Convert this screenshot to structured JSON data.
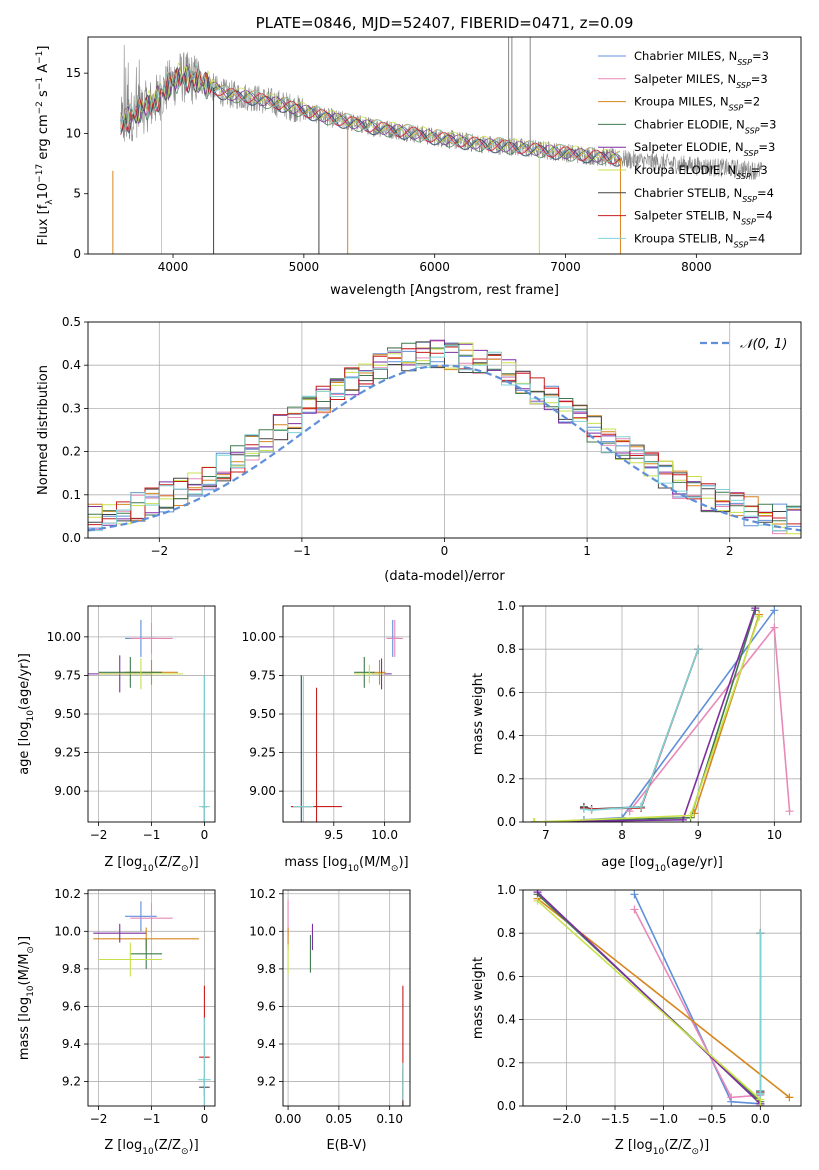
{
  "colors": {
    "chabrier_miles": "#5f8fd8",
    "salpeter_miles": "#e88ab9",
    "kroupa_miles": "#d6861f",
    "chabrier_elodie": "#3f7a4c",
    "salpeter_elodie": "#7e2fa3",
    "kroupa_elodie": "#c8e04a",
    "chabrier_stelib": "#444444",
    "salpeter_stelib": "#c81e1e",
    "kroupa_stelib": "#7fd3d6",
    "data": "#888888",
    "normal": "#5f8fd8"
  },
  "chart_data": [
    {
      "id": "spectrum",
      "type": "line",
      "title": "PLATE=0846, MJD=52407, FIBERID=0471, z=0.09",
      "xlabel": "wavelength [Angstrom, rest frame]",
      "ylabel_parts": [
        "Flux [f",
        "λ",
        "10",
        "−17",
        " erg cm",
        "−2",
        " s",
        "−1",
        " A",
        "−1",
        "]"
      ],
      "xlim": [
        3350,
        8800
      ],
      "ylim": [
        0,
        18
      ],
      "xticks": [
        4000,
        5000,
        6000,
        7000,
        8000
      ],
      "yticks": [
        0,
        5,
        10,
        15
      ],
      "legend_position": "top-right",
      "legend": [
        {
          "model": "Chabrier MILES",
          "n": "3",
          "color_key": "chabrier_miles"
        },
        {
          "model": "Salpeter MILES",
          "n": "3",
          "color_key": "salpeter_miles"
        },
        {
          "model": "Kroupa MILES",
          "n": "2",
          "color_key": "kroupa_miles"
        },
        {
          "model": "Chabrier ELODIE",
          "n": "3",
          "color_key": "chabrier_elodie"
        },
        {
          "model": "Salpeter ELODIE",
          "n": "3",
          "color_key": "salpeter_elodie"
        },
        {
          "model": "Kroupa ELODIE",
          "n": "3",
          "color_key": "kroupa_elodie"
        },
        {
          "model": "Chabrier STELIB",
          "n": "4",
          "color_key": "chabrier_stelib"
        },
        {
          "model": "Salpeter STELIB",
          "n": "4",
          "color_key": "salpeter_stelib"
        },
        {
          "model": "Kroupa STELIB",
          "n": "4",
          "color_key": "kroupa_stelib"
        }
      ],
      "legend_sub": "SSP",
      "continuum": [
        [
          3600,
          10.8
        ],
        [
          3750,
          12.0
        ],
        [
          3850,
          12.5
        ],
        [
          3950,
          13.8
        ],
        [
          4050,
          14.7
        ],
        [
          4200,
          14.4
        ],
        [
          4400,
          13.3
        ],
        [
          4600,
          13.0
        ],
        [
          4800,
          12.5
        ],
        [
          5000,
          11.9
        ],
        [
          5200,
          11.3
        ],
        [
          5500,
          10.6
        ],
        [
          5800,
          10.1
        ],
        [
          6000,
          9.7
        ],
        [
          6300,
          9.2
        ],
        [
          6600,
          8.9
        ],
        [
          7000,
          8.4
        ],
        [
          7500,
          7.8
        ],
        [
          8000,
          7.3
        ],
        [
          8500,
          6.9
        ]
      ],
      "model_range": [
        3600,
        7420
      ],
      "data_range": [
        3600,
        8500
      ],
      "spikes": [
        {
          "x": 3540,
          "min": 0,
          "color_key": "kroupa_miles"
        },
        {
          "x": 3912,
          "min": 0,
          "color_key": "kroupa_elodie"
        },
        {
          "x": 4310,
          "min": 0,
          "color_key": "chabrier_stelib"
        },
        {
          "x": 5115,
          "min": 0,
          "color_key": "chabrier_stelib"
        },
        {
          "x": 5335,
          "min": 0,
          "color_key": "kroupa_miles"
        },
        {
          "x": 6800,
          "min": 0,
          "color_key": "kroupa_elodie"
        },
        {
          "x": 7420,
          "min": 0,
          "color_key": "kroupa_miles"
        },
        {
          "x": 6565,
          "max": 18,
          "color_key": "data"
        },
        {
          "x": 6590,
          "max": 18,
          "color_key": "data"
        },
        {
          "x": 6730,
          "max": 18,
          "color_key": "data"
        }
      ]
    },
    {
      "id": "residuals",
      "type": "histogram",
      "xlabel": "(data-model)/error",
      "ylabel": "Normed distribution",
      "xlim": [
        -2.5,
        2.5
      ],
      "ylim": [
        0,
        0.5
      ],
      "xticks": [
        -2,
        -1,
        0,
        1,
        2
      ],
      "yticks": [
        0.0,
        0.1,
        0.2,
        0.3,
        0.4,
        0.5
      ],
      "grid": true,
      "bin_width": 0.1,
      "legend_position": "top-right",
      "normal_label": "𝒩(0, 1)",
      "normal_mean": 0,
      "normal_sigma": 1
    },
    {
      "id": "age_vs_Z",
      "type": "errorbar",
      "xlabel_parts": [
        "Z [log",
        "10",
        "(Z/Z",
        "⊙",
        ")]"
      ],
      "ylabel_parts": [
        "age  [log",
        "10",
        "(age/yr)]"
      ],
      "xlim": [
        -2.2,
        0.2
      ],
      "ylim": [
        8.8,
        10.2
      ],
      "xticks": [
        -2,
        -1,
        0
      ],
      "yticks": [
        9.0,
        9.25,
        9.5,
        9.75,
        10.0
      ],
      "grid": true,
      "points": [
        {
          "color_key": "chabrier_miles",
          "x": -1.2,
          "y": 9.99,
          "xerr": 0.3,
          "yerr": 0.12
        },
        {
          "color_key": "salpeter_miles",
          "x": -1.0,
          "y": 9.99,
          "xerr": 0.4,
          "yerr": 0.1
        },
        {
          "color_key": "kroupa_miles",
          "x": -1.0,
          "y": 9.77,
          "xerr": 0.5,
          "yerr": 0.08
        },
        {
          "color_key": "chabrier_elodie",
          "x": -1.4,
          "y": 9.77,
          "xerr": 0.6,
          "yerr": 0.1
        },
        {
          "color_key": "salpeter_elodie",
          "x": -1.6,
          "y": 9.76,
          "xerr": 0.6,
          "yerr": 0.12
        },
        {
          "color_key": "kroupa_elodie",
          "x": -1.2,
          "y": 9.76,
          "xerr": 0.8,
          "yerr": 0.1
        },
        {
          "color_key": "chabrier_stelib",
          "x": 0.0,
          "y": 8.9,
          "xerr": 0.05,
          "yerr": 0.85
        },
        {
          "color_key": "salpeter_stelib",
          "x": 0.0,
          "y": 8.9,
          "xerr": 0.05,
          "yerr": 0.6
        },
        {
          "color_key": "kroupa_stelib",
          "x": 0.0,
          "y": 8.9,
          "xerr": 0.1,
          "yerr": 0.85
        }
      ]
    },
    {
      "id": "age_vs_mass",
      "type": "errorbar",
      "xlabel_parts": [
        "mass [log",
        "10",
        "(M/M",
        "⊙",
        ")]"
      ],
      "xlim": [
        9.0,
        10.25
      ],
      "ylim": [
        8.8,
        10.2
      ],
      "xticks": [
        9.5,
        10.0
      ],
      "yticks": [
        9.0,
        9.25,
        9.5,
        9.75,
        10.0
      ],
      "grid": true,
      "points": [
        {
          "color_key": "chabrier_miles",
          "x": 10.08,
          "y": 9.99,
          "xerr": 0.06,
          "yerr": 0.12
        },
        {
          "color_key": "salpeter_miles",
          "x": 10.1,
          "y": 9.99,
          "xerr": 0.08,
          "yerr": 0.12
        },
        {
          "color_key": "kroupa_miles",
          "x": 9.95,
          "y": 9.77,
          "xerr": 0.06,
          "yerr": 0.08
        },
        {
          "color_key": "chabrier_elodie",
          "x": 9.8,
          "y": 9.77,
          "xerr": 0.1,
          "yerr": 0.1
        },
        {
          "color_key": "salpeter_elodie",
          "x": 9.97,
          "y": 9.76,
          "xerr": 0.1,
          "yerr": 0.1
        },
        {
          "color_key": "kroupa_elodie",
          "x": 9.85,
          "y": 9.76,
          "xerr": 0.15,
          "yerr": 0.06
        },
        {
          "color_key": "chabrier_stelib",
          "x": 9.18,
          "y": 8.9,
          "xerr": 0.1,
          "yerr": 0.85
        },
        {
          "color_key": "salpeter_stelib",
          "x": 9.33,
          "y": 8.9,
          "xerr": 0.25,
          "yerr": 0.77
        },
        {
          "color_key": "kroupa_stelib",
          "x": 9.2,
          "y": 8.9,
          "xerr": 0.1,
          "yerr": 0.85
        }
      ]
    },
    {
      "id": "weight_vs_age",
      "type": "line",
      "xlabel_parts": [
        "age  [log",
        "10",
        "(age/yr)]"
      ],
      "ylabel": "mass weight",
      "xlim": [
        6.7,
        10.35
      ],
      "ylim": [
        0,
        1
      ],
      "xticks": [
        7,
        8,
        9,
        10
      ],
      "yticks": [
        0.0,
        0.2,
        0.4,
        0.6,
        0.8,
        1.0
      ],
      "grid": true,
      "series": [
        {
          "color_key": "chabrier_miles",
          "x": [
            7.5,
            8.0,
            10.0
          ],
          "y": [
            0.01,
            0.02,
            0.98
          ]
        },
        {
          "color_key": "salpeter_miles",
          "x": [
            8.1,
            10.0,
            10.2
          ],
          "y": [
            0.05,
            0.9,
            0.05
          ]
        },
        {
          "color_key": "kroupa_miles",
          "x": [
            8.95,
            9.8
          ],
          "y": [
            0.04,
            0.96
          ]
        },
        {
          "color_key": "chabrier_elodie",
          "x": [
            6.85,
            8.9,
            9.75
          ],
          "y": [
            0.0,
            0.02,
            0.98
          ]
        },
        {
          "color_key": "salpeter_elodie",
          "x": [
            6.85,
            8.8,
            9.75
          ],
          "y": [
            0.0,
            0.01,
            0.99
          ]
        },
        {
          "color_key": "kroupa_elodie",
          "x": [
            6.85,
            8.9,
            9.8
          ],
          "y": [
            0.0,
            0.03,
            0.95
          ]
        },
        {
          "color_key": "chabrier_stelib",
          "x": [
            7.5,
            7.6,
            8.25,
            9.0
          ],
          "y": [
            0.07,
            0.06,
            0.07,
            0.8
          ]
        },
        {
          "color_key": "salpeter_stelib",
          "x": [
            7.5,
            7.6,
            8.25,
            9.0
          ],
          "y": [
            0.065,
            0.06,
            0.065,
            0.8
          ]
        },
        {
          "color_key": "kroupa_stelib",
          "x": [
            7.5,
            7.6,
            8.25,
            9.0
          ],
          "y": [
            0.06,
            0.055,
            0.07,
            0.8
          ]
        }
      ]
    },
    {
      "id": "mass_vs_Z",
      "type": "errorbar",
      "xlabel_parts": [
        "Z [log",
        "10",
        "(Z/Z",
        "⊙",
        ")]"
      ],
      "ylabel_parts": [
        "mass [log",
        "10",
        "(M/M",
        "⊙",
        ")]"
      ],
      "xlim": [
        -2.2,
        0.2
      ],
      "ylim": [
        9.07,
        10.22
      ],
      "xticks": [
        -2,
        -1,
        0
      ],
      "yticks": [
        9.2,
        9.4,
        9.6,
        9.8,
        10.0,
        10.2
      ],
      "grid": true,
      "points": [
        {
          "color_key": "chabrier_miles",
          "x": -1.2,
          "y": 10.08,
          "xerr": 0.3,
          "yerr": 0.08
        },
        {
          "color_key": "salpeter_miles",
          "x": -1.0,
          "y": 10.07,
          "xerr": 0.4,
          "yerr": 0.08
        },
        {
          "color_key": "kroupa_miles",
          "x": -1.1,
          "y": 9.96,
          "xerr": 1.0,
          "yerr": 0.06
        },
        {
          "color_key": "chabrier_elodie",
          "x": -1.1,
          "y": 9.88,
          "xerr": 0.3,
          "yerr": 0.08
        },
        {
          "color_key": "salpeter_elodie",
          "x": -1.6,
          "y": 9.99,
          "xerr": 0.5,
          "yerr": 0.05
        },
        {
          "color_key": "kroupa_elodie",
          "x": -1.4,
          "y": 9.85,
          "xerr": 0.6,
          "yerr": 0.09
        },
        {
          "color_key": "chabrier_stelib",
          "x": 0.0,
          "y": 9.17,
          "xerr": 0.1,
          "yerr": 0.05
        },
        {
          "color_key": "salpeter_stelib",
          "x": 0.0,
          "y": 9.33,
          "xerr": 0.1,
          "yerr": 0.38
        },
        {
          "color_key": "kroupa_stelib",
          "x": 0.0,
          "y": 9.21,
          "xerr": 0.12,
          "yerr": 0.33
        }
      ]
    },
    {
      "id": "mass_vs_ebv",
      "type": "errorbar",
      "xlabel": "E(B-V)",
      "xlim": [
        -0.005,
        0.12
      ],
      "ylim": [
        9.07,
        10.22
      ],
      "xticks": [
        0.0,
        0.05,
        0.1
      ],
      "yticks": [
        9.2,
        9.4,
        9.6,
        9.8,
        10.0,
        10.2
      ],
      "grid": true,
      "points": [
        {
          "color_key": "salpeter_miles",
          "x": 0.0,
          "y": 10.07,
          "xerr": 0.0,
          "yerr": 0.1
        },
        {
          "color_key": "kroupa_miles",
          "x": 0.0,
          "y": 9.96,
          "xerr": 0.0,
          "yerr": 0.06
        },
        {
          "color_key": "kroupa_elodie",
          "x": 0.0,
          "y": 9.85,
          "xerr": 0.0,
          "yerr": 0.08
        },
        {
          "color_key": "chabrier_elodie",
          "x": 0.022,
          "y": 9.88,
          "xerr": 0.0,
          "yerr": 0.1
        },
        {
          "color_key": "salpeter_elodie",
          "x": 0.024,
          "y": 9.97,
          "xerr": 0.0,
          "yerr": 0.07
        },
        {
          "color_key": "salpeter_stelib",
          "x": 0.113,
          "y": 9.33,
          "xerr": 0.0,
          "yerr": 0.38
        },
        {
          "color_key": "chabrier_stelib",
          "x": 0.113,
          "y": 9.17,
          "xerr": 0.0,
          "yerr": 0.1
        },
        {
          "color_key": "kroupa_stelib",
          "x": 0.113,
          "y": 9.2,
          "xerr": 0.0,
          "yerr": 0.1
        }
      ]
    },
    {
      "id": "weight_vs_Z",
      "type": "line",
      "xlabel_parts": [
        "Z [log",
        "10",
        "(Z/Z",
        "⊙",
        ")]"
      ],
      "ylabel": "mass weight",
      "xlim": [
        -2.45,
        0.42
      ],
      "ylim": [
        0,
        1
      ],
      "xticks": [
        -2.0,
        -1.5,
        -1.0,
        -0.5,
        0.0
      ],
      "yticks": [
        0.0,
        0.2,
        0.4,
        0.6,
        0.8,
        1.0
      ],
      "grid": true,
      "series": [
        {
          "color_key": "chabrier_miles",
          "x": [
            -1.3,
            -0.3,
            0.0
          ],
          "y": [
            0.98,
            0.02,
            0.01
          ]
        },
        {
          "color_key": "salpeter_miles",
          "x": [
            -1.3,
            -0.3,
            0.0
          ],
          "y": [
            0.91,
            0.04,
            0.05
          ]
        },
        {
          "color_key": "kroupa_miles",
          "x": [
            -2.3,
            0.3
          ],
          "y": [
            0.96,
            0.04
          ]
        },
        {
          "color_key": "chabrier_elodie",
          "x": [
            -2.3,
            0.0,
            0.0
          ],
          "y": [
            0.98,
            0.02,
            0.0
          ]
        },
        {
          "color_key": "salpeter_elodie",
          "x": [
            -2.3,
            0.0,
            0.0
          ],
          "y": [
            0.99,
            0.01,
            0.0
          ]
        },
        {
          "color_key": "kroupa_elodie",
          "x": [
            -2.3,
            0.0,
            0.0
          ],
          "y": [
            0.95,
            0.03,
            0.0
          ]
        },
        {
          "color_key": "chabrier_stelib",
          "x": [
            0.0,
            0.0,
            0.0,
            0.0
          ],
          "y": [
            0.07,
            0.06,
            0.07,
            0.8
          ]
        },
        {
          "color_key": "salpeter_stelib",
          "x": [
            0.0,
            0.0,
            0.0,
            0.0
          ],
          "y": [
            0.065,
            0.06,
            0.065,
            0.8
          ]
        },
        {
          "color_key": "kroupa_stelib",
          "x": [
            0.0,
            0.0,
            0.0,
            0.0
          ],
          "y": [
            0.06,
            0.055,
            0.07,
            0.8
          ]
        }
      ]
    }
  ]
}
